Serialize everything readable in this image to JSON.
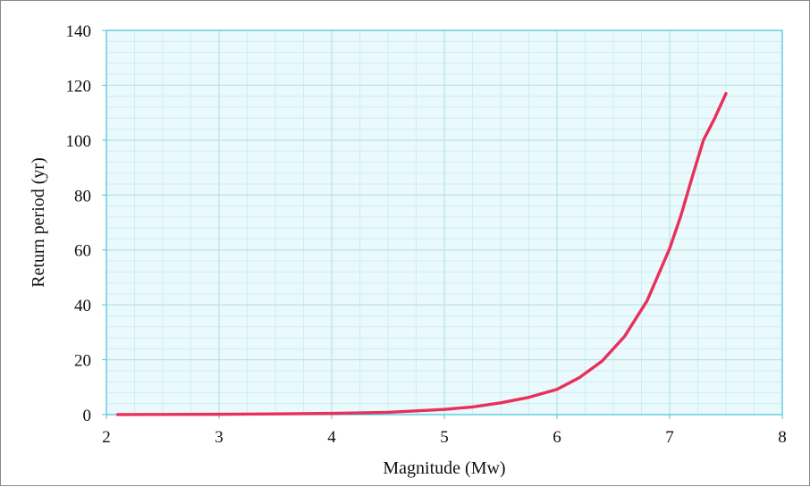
{
  "chart_data": {
    "type": "line",
    "title": "",
    "xlabel": "Magnitude (Mw)",
    "ylabel": "Return period (yr)",
    "xlim": [
      2,
      8
    ],
    "ylim": [
      0,
      140
    ],
    "x_ticks": [
      2,
      3,
      4,
      5,
      6,
      7,
      8
    ],
    "y_ticks": [
      0,
      20,
      40,
      60,
      80,
      100,
      120,
      140
    ],
    "grid": true,
    "legend": "none",
    "colors": {
      "plot_background": "#eaf9fb",
      "grid_minor": "#cdeef3",
      "grid_major": "#b8e3ea",
      "plot_border": "#4cc6da",
      "line": "#e8305a"
    },
    "series": [
      {
        "x": [
          2.1,
          2.5,
          3.0,
          3.5,
          4.0,
          4.5,
          5.0,
          5.25,
          5.5,
          5.75,
          6.0,
          6.2,
          6.4,
          6.6,
          6.8,
          7.0,
          7.1,
          7.2,
          7.3,
          7.4,
          7.5
        ],
        "y": [
          0.02,
          0.05,
          0.12,
          0.28,
          0.45,
          0.85,
          1.9,
          2.8,
          4.3,
          6.3,
          9.2,
          13.5,
          19.5,
          28.5,
          41.5,
          60.5,
          72.5,
          86.5,
          100.0,
          108.0,
          117.0
        ]
      }
    ]
  }
}
